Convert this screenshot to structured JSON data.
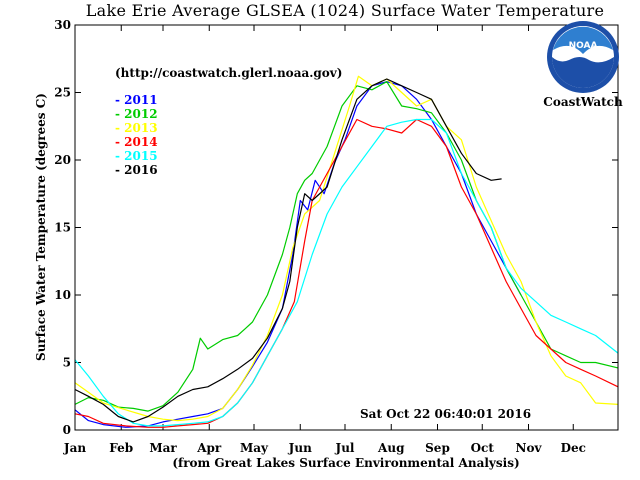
{
  "chart_data": {
    "type": "line",
    "title": "Lake Erie Average GLSEA (1024) Surface Water Temperature",
    "ylabel": "Surface Water Temperature (degrees C)",
    "xlabel": "(from Great Lakes Surface Environmental Analysis)",
    "source_url": "(http://coastwatch.glerl.noaa.gov)",
    "timestamp": "Sat Oct 22 06:40:01 2016",
    "logo": {
      "text": "NOAA",
      "caption": "CoastWatch"
    },
    "xlim": [
      1,
      365
    ],
    "ylim": [
      0,
      30
    ],
    "months": [
      "Jan",
      "Feb",
      "Mar",
      "Apr",
      "May",
      "Jun",
      "Jul",
      "Aug",
      "Sep",
      "Oct",
      "Nov",
      "Dec"
    ],
    "month_start_days": [
      1,
      32,
      60,
      91,
      121,
      152,
      182,
      213,
      244,
      274,
      305,
      335
    ],
    "yticks": [
      0,
      5,
      10,
      15,
      20,
      25,
      30
    ],
    "legend_position": "top-left",
    "series": [
      {
        "name": "2011",
        "color": "#0000ff",
        "points": [
          [
            1,
            1.5
          ],
          [
            10,
            0.7
          ],
          [
            20,
            0.4
          ],
          [
            35,
            0.2
          ],
          [
            50,
            0.3
          ],
          [
            60,
            0.6
          ],
          [
            70,
            0.8
          ],
          [
            80,
            1.0
          ],
          [
            90,
            1.2
          ],
          [
            100,
            1.6
          ],
          [
            110,
            3.0
          ],
          [
            120,
            4.7
          ],
          [
            130,
            6.5
          ],
          [
            140,
            9.0
          ],
          [
            147,
            13.0
          ],
          [
            152,
            17.0
          ],
          [
            157,
            16.3
          ],
          [
            162,
            18.5
          ],
          [
            168,
            17.5
          ],
          [
            175,
            19.8
          ],
          [
            182,
            21.5
          ],
          [
            190,
            24.0
          ],
          [
            200,
            25.5
          ],
          [
            210,
            25.8
          ],
          [
            220,
            25.5
          ],
          [
            230,
            24.5
          ],
          [
            240,
            23.0
          ],
          [
            250,
            21.0
          ],
          [
            260,
            19.0
          ],
          [
            270,
            16.0
          ],
          [
            280,
            14.0
          ],
          [
            290,
            12.0
          ],
          [
            300,
            10.0
          ]
        ]
      },
      {
        "name": "2012",
        "color": "#00cc00",
        "points": [
          [
            1,
            1.9
          ],
          [
            10,
            2.4
          ],
          [
            20,
            2.2
          ],
          [
            30,
            1.7
          ],
          [
            40,
            1.6
          ],
          [
            50,
            1.4
          ],
          [
            60,
            1.8
          ],
          [
            70,
            2.8
          ],
          [
            80,
            4.5
          ],
          [
            85,
            6.8
          ],
          [
            90,
            6.0
          ],
          [
            100,
            6.7
          ],
          [
            110,
            7.0
          ],
          [
            115,
            7.5
          ],
          [
            120,
            8.0
          ],
          [
            130,
            10.0
          ],
          [
            140,
            13.0
          ],
          [
            145,
            15.0
          ],
          [
            150,
            17.5
          ],
          [
            155,
            18.5
          ],
          [
            160,
            19.0
          ],
          [
            170,
            21.0
          ],
          [
            180,
            24.0
          ],
          [
            190,
            25.5
          ],
          [
            200,
            25.2
          ],
          [
            210,
            25.8
          ],
          [
            220,
            24.0
          ],
          [
            230,
            23.8
          ],
          [
            240,
            23.5
          ],
          [
            250,
            22.0
          ],
          [
            260,
            20.0
          ],
          [
            270,
            17.0
          ],
          [
            280,
            15.0
          ],
          [
            290,
            12.0
          ],
          [
            300,
            10.0
          ],
          [
            310,
            8.0
          ],
          [
            320,
            6.0
          ],
          [
            330,
            5.5
          ],
          [
            340,
            5.0
          ],
          [
            350,
            5.0
          ],
          [
            365,
            4.6
          ]
        ]
      },
      {
        "name": "2013",
        "color": "#ffff00",
        "points": [
          [
            1,
            3.5
          ],
          [
            10,
            2.8
          ],
          [
            20,
            2.0
          ],
          [
            35,
            1.5
          ],
          [
            50,
            1.0
          ],
          [
            60,
            0.8
          ],
          [
            70,
            0.7
          ],
          [
            80,
            0.8
          ],
          [
            90,
            1.0
          ],
          [
            100,
            1.6
          ],
          [
            110,
            3.0
          ],
          [
            120,
            4.8
          ],
          [
            130,
            7.0
          ],
          [
            140,
            10.0
          ],
          [
            147,
            13.5
          ],
          [
            155,
            16.0
          ],
          [
            165,
            17.0
          ],
          [
            175,
            20.5
          ],
          [
            185,
            24.0
          ],
          [
            191,
            26.2
          ],
          [
            200,
            25.5
          ],
          [
            210,
            26.0
          ],
          [
            220,
            25.0
          ],
          [
            230,
            24.0
          ],
          [
            240,
            24.5
          ],
          [
            250,
            22.5
          ],
          [
            260,
            21.5
          ],
          [
            270,
            18.0
          ],
          [
            280,
            15.5
          ],
          [
            290,
            13.0
          ],
          [
            300,
            11.0
          ],
          [
            310,
            8.0
          ],
          [
            320,
            5.5
          ],
          [
            330,
            4.0
          ],
          [
            340,
            3.5
          ],
          [
            350,
            2.0
          ],
          [
            365,
            1.9
          ]
        ]
      },
      {
        "name": "2014",
        "color": "#ff0000",
        "points": [
          [
            1,
            1.2
          ],
          [
            10,
            1.0
          ],
          [
            20,
            0.5
          ],
          [
            35,
            0.3
          ],
          [
            50,
            0.2
          ],
          [
            60,
            0.2
          ],
          [
            70,
            0.3
          ],
          [
            80,
            0.4
          ],
          [
            90,
            0.5
          ],
          [
            100,
            1.0
          ],
          [
            110,
            2.0
          ],
          [
            120,
            3.5
          ],
          [
            130,
            5.5
          ],
          [
            140,
            7.5
          ],
          [
            148,
            9.5
          ],
          [
            155,
            14.0
          ],
          [
            160,
            17.0
          ],
          [
            170,
            19.0
          ],
          [
            180,
            21.0
          ],
          [
            190,
            23.0
          ],
          [
            200,
            22.5
          ],
          [
            210,
            22.3
          ],
          [
            220,
            22.0
          ],
          [
            230,
            23.0
          ],
          [
            240,
            22.5
          ],
          [
            250,
            21.0
          ],
          [
            260,
            18.0
          ],
          [
            270,
            16.0
          ],
          [
            280,
            13.5
          ],
          [
            290,
            11.0
          ],
          [
            300,
            9.0
          ],
          [
            310,
            7.0
          ],
          [
            320,
            6.0
          ],
          [
            330,
            5.0
          ],
          [
            340,
            4.5
          ],
          [
            350,
            4.0
          ],
          [
            365,
            3.2
          ]
        ]
      },
      {
        "name": "2015",
        "color": "#00ffff",
        "points": [
          [
            1,
            5.2
          ],
          [
            10,
            4.0
          ],
          [
            20,
            2.5
          ],
          [
            30,
            1.2
          ],
          [
            40,
            0.5
          ],
          [
            50,
            0.3
          ],
          [
            60,
            0.3
          ],
          [
            70,
            0.4
          ],
          [
            80,
            0.5
          ],
          [
            90,
            0.6
          ],
          [
            100,
            1.0
          ],
          [
            110,
            2.0
          ],
          [
            120,
            3.5
          ],
          [
            130,
            5.5
          ],
          [
            140,
            7.5
          ],
          [
            150,
            9.5
          ],
          [
            160,
            13.0
          ],
          [
            170,
            16.0
          ],
          [
            180,
            18.0
          ],
          [
            190,
            19.5
          ],
          [
            200,
            21.0
          ],
          [
            210,
            22.5
          ],
          [
            220,
            22.8
          ],
          [
            230,
            23.0
          ],
          [
            240,
            23.0
          ],
          [
            250,
            22.0
          ],
          [
            260,
            19.0
          ],
          [
            270,
            17.0
          ],
          [
            280,
            15.0
          ],
          [
            290,
            12.0
          ],
          [
            300,
            10.5
          ],
          [
            310,
            9.5
          ],
          [
            320,
            8.5
          ],
          [
            330,
            8.0
          ],
          [
            340,
            7.5
          ],
          [
            350,
            7.0
          ],
          [
            365,
            5.7
          ]
        ]
      },
      {
        "name": "2016",
        "color": "#000000",
        "points": [
          [
            1,
            3.0
          ],
          [
            10,
            2.5
          ],
          [
            20,
            1.9
          ],
          [
            30,
            1.0
          ],
          [
            40,
            0.6
          ],
          [
            50,
            1.0
          ],
          [
            60,
            1.7
          ],
          [
            70,
            2.5
          ],
          [
            80,
            3.0
          ],
          [
            90,
            3.2
          ],
          [
            100,
            3.8
          ],
          [
            110,
            4.5
          ],
          [
            120,
            5.3
          ],
          [
            130,
            6.8
          ],
          [
            140,
            9.0
          ],
          [
            145,
            11.0
          ],
          [
            150,
            15.0
          ],
          [
            155,
            17.5
          ],
          [
            160,
            17.0
          ],
          [
            170,
            18.0
          ],
          [
            180,
            21.5
          ],
          [
            190,
            24.5
          ],
          [
            200,
            25.5
          ],
          [
            210,
            26.0
          ],
          [
            220,
            25.5
          ],
          [
            230,
            25.0
          ],
          [
            240,
            24.5
          ],
          [
            250,
            22.5
          ],
          [
            260,
            20.5
          ],
          [
            270,
            19.0
          ],
          [
            280,
            18.5
          ],
          [
            287,
            18.6
          ]
        ]
      }
    ]
  }
}
